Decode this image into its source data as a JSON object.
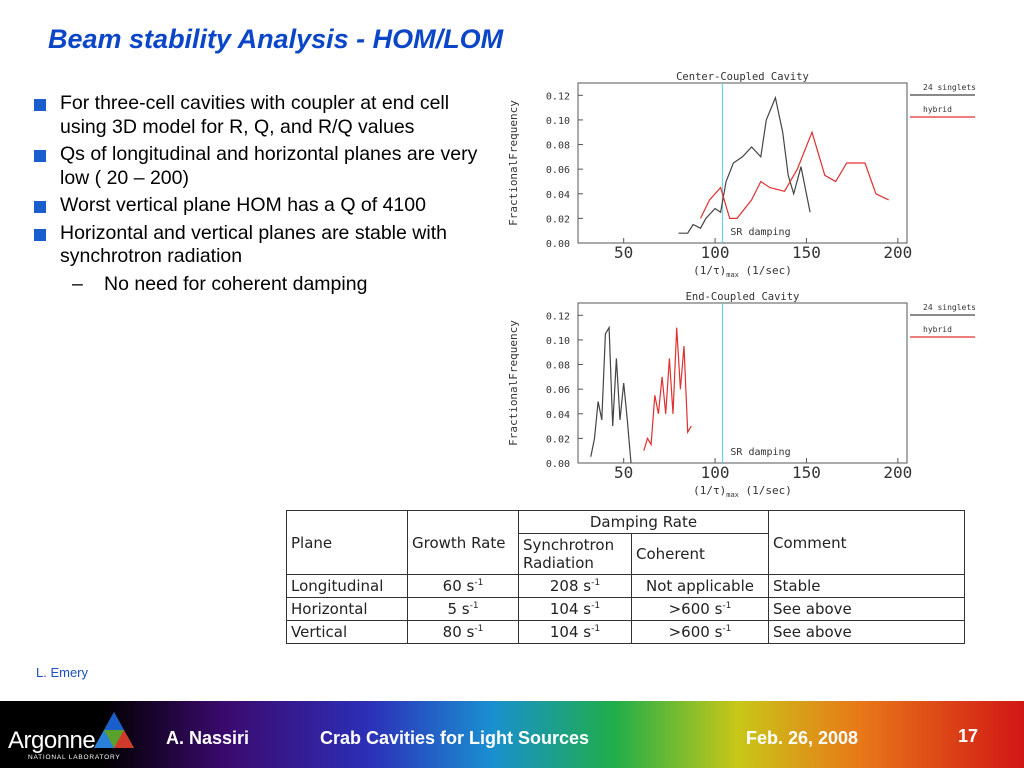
{
  "title": "Beam stability Analysis - HOM/LOM",
  "bullets": [
    "For three-cell cavities with  coupler at end cell using 3D model for R, Q, and R/Q values",
    "Qs of longitudinal and horizontal planes are very low ( 20 – 200)",
    "Worst vertical plane HOM has a Q of 4100",
    "Horizontal and vertical planes are stable with synchrotron radiation"
  ],
  "sub_bullet": {
    "dash": "–",
    "text": "No need for coherent damping"
  },
  "chart_data": [
    {
      "type": "line",
      "title": "Center-Coupled Cavity",
      "ylabel": "FractionalFrequency",
      "xlabel_main": "(1/τ)",
      "xlabel_sub": "max",
      "xlabel_unit": "(1/sec)",
      "xlim": [
        25,
        205
      ],
      "ylim": [
        0,
        0.13
      ],
      "xticks": [
        {
          "v": 50,
          "label": "50"
        },
        {
          "v": 100,
          "label": "100"
        },
        {
          "v": 150,
          "label": "150"
        },
        {
          "v": 200,
          "label": "200"
        }
      ],
      "yticks": [
        {
          "v": 0,
          "label": "0.00"
        },
        {
          "v": 0.02,
          "label": "0.02"
        },
        {
          "v": 0.04,
          "label": "0.04"
        },
        {
          "v": 0.06,
          "label": "0.06"
        },
        {
          "v": 0.08,
          "label": "0.08"
        },
        {
          "v": 0.1,
          "label": "0.10"
        },
        {
          "v": 0.12,
          "label": "0.12"
        }
      ],
      "vline": {
        "x": 104,
        "label": "SR damping",
        "color": "#4fd0e8"
      },
      "legend": [
        {
          "name": "24 singlets",
          "color": "#444444"
        },
        {
          "name": "hybrid",
          "color": "#e03030"
        }
      ],
      "series": [
        {
          "name": "24 singlets",
          "color": "#444444",
          "x": [
            80,
            85,
            88,
            92,
            95,
            100,
            103,
            106,
            110,
            115,
            120,
            125,
            128,
            133,
            137,
            140,
            143,
            147,
            152
          ],
          "y": [
            0.008,
            0.008,
            0.015,
            0.012,
            0.02,
            0.028,
            0.025,
            0.05,
            0.065,
            0.07,
            0.078,
            0.07,
            0.1,
            0.118,
            0.09,
            0.055,
            0.04,
            0.062,
            0.025
          ]
        },
        {
          "name": "hybrid",
          "color": "#e03030",
          "x": [
            92,
            97,
            103,
            108,
            112,
            120,
            125,
            130,
            138,
            145,
            153,
            160,
            166,
            172,
            182,
            188,
            195
          ],
          "y": [
            0.02,
            0.035,
            0.045,
            0.02,
            0.02,
            0.035,
            0.05,
            0.045,
            0.042,
            0.06,
            0.09,
            0.055,
            0.05,
            0.065,
            0.065,
            0.04,
            0.035
          ]
        }
      ]
    },
    {
      "type": "line",
      "title": "End-Coupled Cavity",
      "ylabel": "FractionalFrequency",
      "xlabel_main": "(1/τ)",
      "xlabel_sub": "max",
      "xlabel_unit": "(1/sec)",
      "xlim": [
        25,
        205
      ],
      "ylim": [
        0,
        0.13
      ],
      "xticks": [
        {
          "v": 50,
          "label": "50"
        },
        {
          "v": 100,
          "label": "100"
        },
        {
          "v": 150,
          "label": "150"
        },
        {
          "v": 200,
          "label": "200"
        }
      ],
      "yticks": [
        {
          "v": 0,
          "label": "0.00"
        },
        {
          "v": 0.02,
          "label": "0.02"
        },
        {
          "v": 0.04,
          "label": "0.04"
        },
        {
          "v": 0.06,
          "label": "0.06"
        },
        {
          "v": 0.08,
          "label": "0.08"
        },
        {
          "v": 0.1,
          "label": "0.10"
        },
        {
          "v": 0.12,
          "label": "0.12"
        }
      ],
      "vline": {
        "x": 104,
        "label": "SR damping",
        "color": "#4fd0e8"
      },
      "legend": [
        {
          "name": "24 singlets",
          "color": "#444444"
        },
        {
          "name": "hybrid",
          "color": "#e03030"
        }
      ],
      "series": [
        {
          "name": "24 singlets",
          "color": "#444444",
          "x": [
            32,
            34,
            36,
            38,
            40,
            42,
            44,
            46,
            48,
            50,
            52,
            54
          ],
          "y": [
            0.005,
            0.02,
            0.05,
            0.035,
            0.105,
            0.11,
            0.03,
            0.085,
            0.035,
            0.065,
            0.035,
            0.0
          ]
        },
        {
          "name": "hybrid",
          "color": "#e03030",
          "x": [
            61,
            63,
            65,
            67,
            69,
            71,
            73,
            75,
            77,
            79,
            81,
            83,
            85,
            87
          ],
          "y": [
            0.01,
            0.02,
            0.015,
            0.055,
            0.04,
            0.07,
            0.04,
            0.085,
            0.04,
            0.11,
            0.06,
            0.095,
            0.025,
            0.03
          ]
        }
      ]
    }
  ],
  "table": {
    "h_plane": "Plane",
    "h_growth": "Growth Rate",
    "h_damping": "Damping Rate",
    "h_sync": "Synchrotron Radiation",
    "h_coherent": "Coherent",
    "h_comment": "Comment",
    "rows": [
      {
        "plane": "Longitudinal",
        "growth": "60 s",
        "growth_exp": "-1",
        "sync": "208 s",
        "sync_exp": "-1",
        "coherent": "Not applicable",
        "coherent_exp": "",
        "comment": "Stable"
      },
      {
        "plane": "Horizontal",
        "growth": "5 s",
        "growth_exp": "-1",
        "sync": "104 s",
        "sync_exp": "-1",
        "coherent": ">600 s",
        "coherent_exp": "-1",
        "comment": "See above"
      },
      {
        "plane": "Vertical",
        "growth": "80 s",
        "growth_exp": "-1",
        "sync": "104 s",
        "sync_exp": "-1",
        "coherent": ">600 s",
        "coherent_exp": "-1",
        "comment": "See above"
      }
    ]
  },
  "credit": "L. Emery",
  "footer": {
    "logo_main": "Argonne",
    "logo_sub": "NATIONAL LABORATORY",
    "author": "A. Nassiri",
    "talk": "Crab Cavities for Light Sources",
    "date": "Feb. 26, 2008",
    "page": "17"
  }
}
